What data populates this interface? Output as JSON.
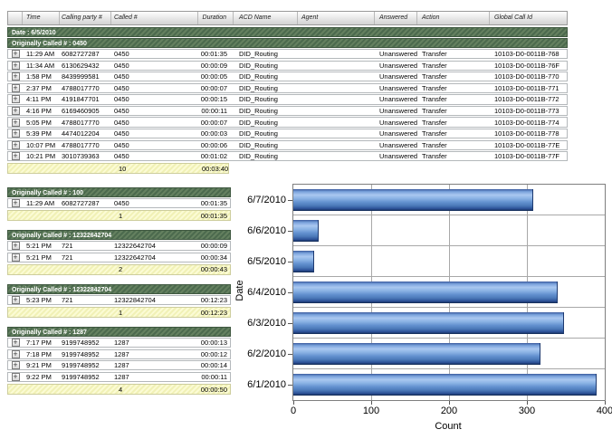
{
  "table": {
    "date_label": "Date : 6/5/2010",
    "columns": [
      "",
      "Time",
      "Calling party #",
      "Called #",
      "Duration",
      "ACD Name",
      "Agent",
      "Answered",
      "Action",
      "Global Call Id"
    ]
  },
  "icons": {
    "expand": "+"
  },
  "groups": [
    {
      "title": "Originally Called # : 0450",
      "rows": [
        {
          "time": "11:29 AM",
          "calling": "6082727287",
          "called": "0450",
          "duration": "00:01:35",
          "acd": "DID_Routing",
          "agent": "",
          "answered": "Unanswered",
          "action": "Transfer",
          "global_id": "10103-D0-0011B-768"
        },
        {
          "time": "11:34 AM",
          "calling": "6130629432",
          "called": "0450",
          "duration": "00:00:09",
          "acd": "DID_Routing",
          "agent": "",
          "answered": "Unanswered",
          "action": "Transfer",
          "global_id": "10103-D0-0011B-76F"
        },
        {
          "time": "1:58 PM",
          "calling": "8439999581",
          "called": "0450",
          "duration": "00:00:05",
          "acd": "DID_Routing",
          "agent": "",
          "answered": "Unanswered",
          "action": "Transfer",
          "global_id": "10103-D0-0011B-770"
        },
        {
          "time": "2:37 PM",
          "calling": "4788017770",
          "called": "0450",
          "duration": "00:00:07",
          "acd": "DID_Routing",
          "agent": "",
          "answered": "Unanswered",
          "action": "Transfer",
          "global_id": "10103-D0-0011B-771"
        },
        {
          "time": "4:11 PM",
          "calling": "4191847701",
          "called": "0450",
          "duration": "00:00:15",
          "acd": "DID_Routing",
          "agent": "",
          "answered": "Unanswered",
          "action": "Transfer",
          "global_id": "10103-D0-0011B-772"
        },
        {
          "time": "4:16 PM",
          "calling": "6169460905",
          "called": "0450",
          "duration": "00:00:11",
          "acd": "DID_Routing",
          "agent": "",
          "answered": "Unanswered",
          "action": "Transfer",
          "global_id": "10103-D0-0011B-773"
        },
        {
          "time": "5:05 PM",
          "calling": "4788017770",
          "called": "0450",
          "duration": "00:00:07",
          "acd": "DID_Routing",
          "agent": "",
          "answered": "Unanswered",
          "action": "Transfer",
          "global_id": "10103-D0-0011B-774"
        },
        {
          "time": "5:39 PM",
          "calling": "4474012204",
          "called": "0450",
          "duration": "00:00:03",
          "acd": "DID_Routing",
          "agent": "",
          "answered": "Unanswered",
          "action": "Transfer",
          "global_id": "10103-D0-0011B-778"
        },
        {
          "time": "10:07 PM",
          "calling": "4788017770",
          "called": "0450",
          "duration": "00:00:06",
          "acd": "DID_Routing",
          "agent": "",
          "answered": "Unanswered",
          "action": "Transfer",
          "global_id": "10103-D0-0011B-77E"
        },
        {
          "time": "10:21 PM",
          "calling": "3010739363",
          "called": "0450",
          "duration": "00:01:02",
          "acd": "DID_Routing",
          "agent": "",
          "answered": "Unanswered",
          "action": "Transfer",
          "global_id": "10103-D0-0011B-77F"
        }
      ],
      "summary": {
        "count": "10",
        "total": "00:03:40"
      }
    },
    {
      "title": "Originally Called # : 100",
      "rows": [
        {
          "time": "11:29 AM",
          "calling": "6082727287",
          "called": "0450",
          "duration": "00:01:35"
        }
      ],
      "summary": {
        "count": "1",
        "total": "00:01:35"
      }
    },
    {
      "title": "Originally Called # : 12322642704",
      "rows": [
        {
          "time": "5:21 PM",
          "calling": "721",
          "called": "12322642704",
          "duration": "00:00:09"
        },
        {
          "time": "5:21 PM",
          "calling": "721",
          "called": "12322642704",
          "duration": "00:00:34"
        }
      ],
      "summary": {
        "count": "2",
        "total": "00:00:43"
      }
    },
    {
      "title": "Originally Called # : 12322842704",
      "rows": [
        {
          "time": "5:23 PM",
          "calling": "721",
          "called": "12322842704",
          "duration": "00:12:23"
        }
      ],
      "summary": {
        "count": "1",
        "total": "00:12:23"
      }
    },
    {
      "title": "Originally Called # : 1287",
      "rows": [
        {
          "time": "7:17 PM",
          "calling": "9199748952",
          "called": "1287",
          "duration": "00:00:13"
        },
        {
          "time": "7:18 PM",
          "calling": "9199748952",
          "called": "1287",
          "duration": "00:00:12"
        },
        {
          "time": "9:21 PM",
          "calling": "9199748952",
          "called": "1287",
          "duration": "00:00:14"
        },
        {
          "time": "9:22 PM",
          "calling": "9199748952",
          "called": "1287",
          "duration": "00:00:11"
        }
      ],
      "summary": {
        "count": "4",
        "total": "00:00:50"
      }
    }
  ],
  "chart_data": {
    "type": "bar",
    "orientation": "horizontal",
    "categories": [
      "6/7/2010",
      "6/6/2010",
      "6/5/2010",
      "6/4/2010",
      "6/3/2010",
      "6/2/2010",
      "6/1/2010"
    ],
    "values": [
      308,
      33,
      27,
      340,
      348,
      318,
      390
    ],
    "title": "",
    "xlabel": "Count",
    "ylabel": "Date",
    "xlim": [
      0,
      400
    ],
    "xticks": [
      0,
      100,
      200,
      300,
      400
    ],
    "grid": true,
    "legend": "none",
    "bar_color": "#5b8dd0"
  },
  "colors": {
    "group_header_green": "#4f6b50",
    "summary_yellow": "#f6f6c0",
    "bar_blue": "#5b8dd0",
    "gridline_gray": "#a8a8a8"
  }
}
